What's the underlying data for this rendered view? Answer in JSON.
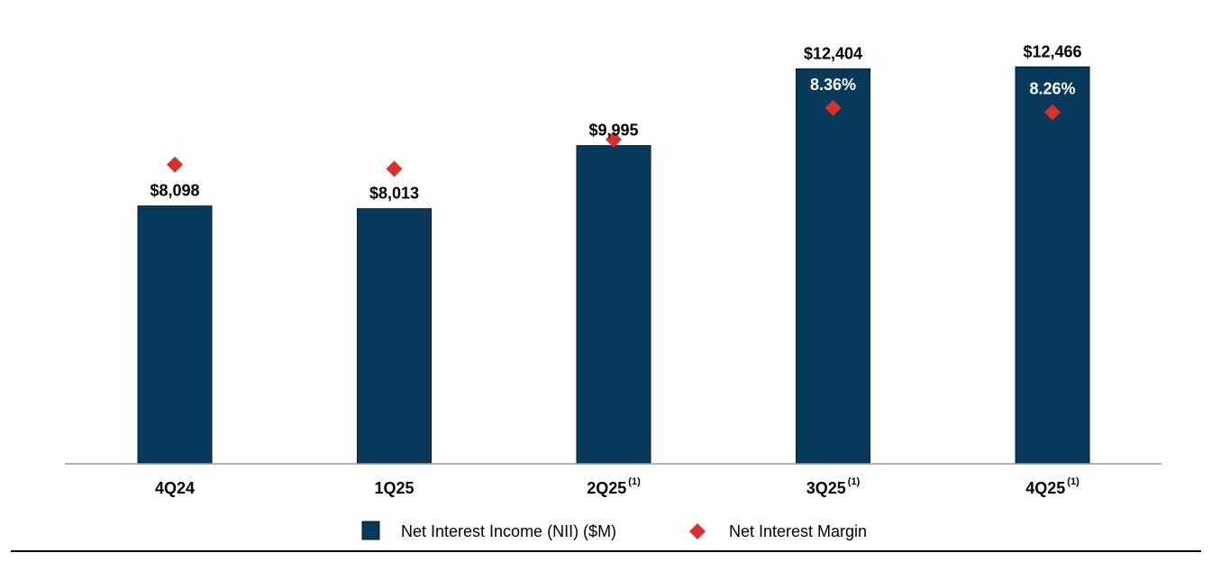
{
  "chart_data": {
    "type": "bar",
    "categories": [
      "4Q24",
      "1Q25",
      "2Q25",
      "3Q25",
      "4Q25"
    ],
    "category_notes": [
      "",
      "",
      "(1)",
      "(1)",
      "(1)"
    ],
    "series": [
      {
        "name": "Net Interest Income (NII) ($M)",
        "type": "bar",
        "values": [
          8098,
          8013,
          9995,
          12404,
          12466
        ],
        "value_labels": [
          "$8,098",
          "$8,013",
          "$9,995",
          "$12,404",
          "$12,466"
        ],
        "color": "#073a5a"
      },
      {
        "name": "Net Interest Margin",
        "type": "scatter",
        "marker": "diamond",
        "values": [
          7.03,
          6.93,
          7.62,
          8.36,
          8.26
        ],
        "value_labels": [
          "7.03%",
          "6.93%",
          "7.62%",
          "8.36%",
          "8.26%"
        ],
        "color": "#d8302e"
      }
    ],
    "ylim": [
      0,
      12700
    ],
    "margin_ylim": [
      0,
      9.5
    ],
    "grid": false,
    "legend_position": "bottom-center"
  }
}
